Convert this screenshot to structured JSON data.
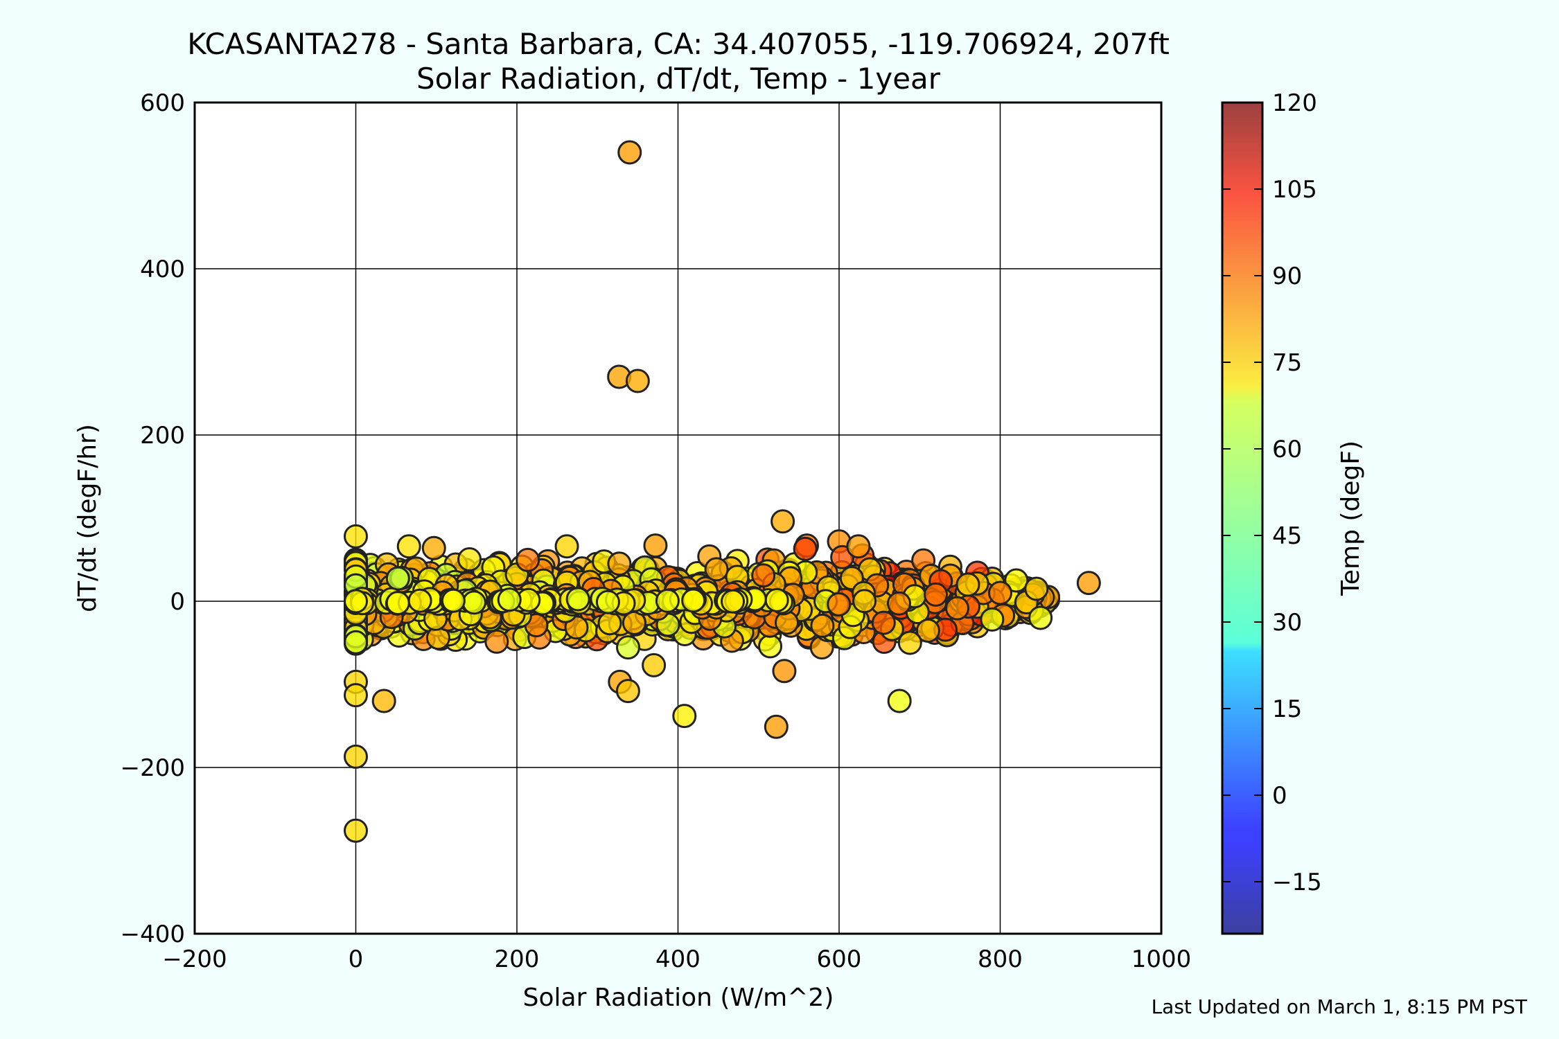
{
  "chart_data": {
    "type": "scatter",
    "title": "KCASANTA278 - Santa Barbara, CA: 34.407055, -119.706924, 207ft",
    "subtitle": "Solar Radiation, dT/dt, Temp - 1year",
    "xlabel": "Solar Radiation (W/m^2)",
    "ylabel": "dT/dt (degF/hr)",
    "xlim": [
      -200,
      1000
    ],
    "ylim": [
      -400,
      600
    ],
    "xticks": [
      -200,
      0,
      200,
      400,
      600,
      800,
      1000
    ],
    "xtick_labels": [
      "−200",
      "0",
      "200",
      "400",
      "600",
      "800",
      "1000"
    ],
    "yticks": [
      -400,
      -200,
      0,
      200,
      400,
      600
    ],
    "ytick_labels": [
      "−400",
      "−200",
      "0",
      "200",
      "400",
      "600"
    ],
    "grid": true,
    "colorbar": {
      "label": "Temp (degF)",
      "range": [
        -24,
        120
      ],
      "ticks": [
        -15,
        0,
        15,
        30,
        45,
        60,
        75,
        90,
        105,
        120
      ],
      "tick_labels": [
        "−15",
        "0",
        "15",
        "30",
        "45",
        "60",
        "75",
        "90",
        "105",
        "120"
      ],
      "colormap": "jet"
    },
    "outliers": [
      {
        "x": 340,
        "y": 540,
        "temp": 80
      },
      {
        "x": 327,
        "y": 270,
        "temp": 79
      },
      {
        "x": 350,
        "y": 265,
        "temp": 78
      },
      {
        "x": 910,
        "y": 22,
        "temp": 80
      },
      {
        "x": 530,
        "y": 96,
        "temp": 78
      },
      {
        "x": 0,
        "y": 78,
        "temp": 70
      },
      {
        "x": 0,
        "y": -97,
        "temp": 72
      },
      {
        "x": 0,
        "y": -113,
        "temp": 71
      },
      {
        "x": 35,
        "y": -120,
        "temp": 76
      },
      {
        "x": 0,
        "y": -187,
        "temp": 72
      },
      {
        "x": 0,
        "y": -276,
        "temp": 71
      },
      {
        "x": 328,
        "y": -97,
        "temp": 79
      },
      {
        "x": 338,
        "y": -108,
        "temp": 74
      },
      {
        "x": 370,
        "y": -77,
        "temp": 73
      },
      {
        "x": 408,
        "y": -138,
        "temp": 68
      },
      {
        "x": 522,
        "y": -151,
        "temp": 80
      },
      {
        "x": 532,
        "y": -84,
        "temp": 81
      },
      {
        "x": 675,
        "y": -120,
        "temp": 64
      },
      {
        "x": 688,
        "y": -50,
        "temp": 72
      },
      {
        "x": 850,
        "y": -20,
        "temp": 64
      },
      {
        "x": 820,
        "y": 25,
        "temp": 66
      },
      {
        "x": 845,
        "y": 15,
        "temp": 72
      },
      {
        "x": 800,
        "y": 10,
        "temp": 84
      },
      {
        "x": 720,
        "y": 8,
        "temp": 86
      },
      {
        "x": 760,
        "y": 20,
        "temp": 74
      },
      {
        "x": 790,
        "y": -22,
        "temp": 64
      },
      {
        "x": 560,
        "y": 67,
        "temp": 86
      },
      {
        "x": 600,
        "y": 72,
        "temp": 82
      },
      {
        "x": 604,
        "y": 53,
        "temp": 90
      },
      {
        "x": 624,
        "y": 66,
        "temp": 80
      },
      {
        "x": 558,
        "y": 63,
        "temp": 92
      },
      {
        "x": 262,
        "y": 66,
        "temp": 72
      },
      {
        "x": 66,
        "y": 66,
        "temp": 70
      },
      {
        "x": 97,
        "y": 64,
        "temp": 78
      },
      {
        "x": 372,
        "y": 67,
        "temp": 80
      },
      {
        "x": 0,
        "y": 0,
        "temp": 66
      }
    ],
    "cluster_summary": {
      "x_range": [
        0,
        860
      ],
      "y_spread": "approximately -65 to 65, densest near 0",
      "temp_range": [
        55,
        100
      ]
    }
  },
  "footer": "Last Updated on March 1, 8:15 PM PST"
}
